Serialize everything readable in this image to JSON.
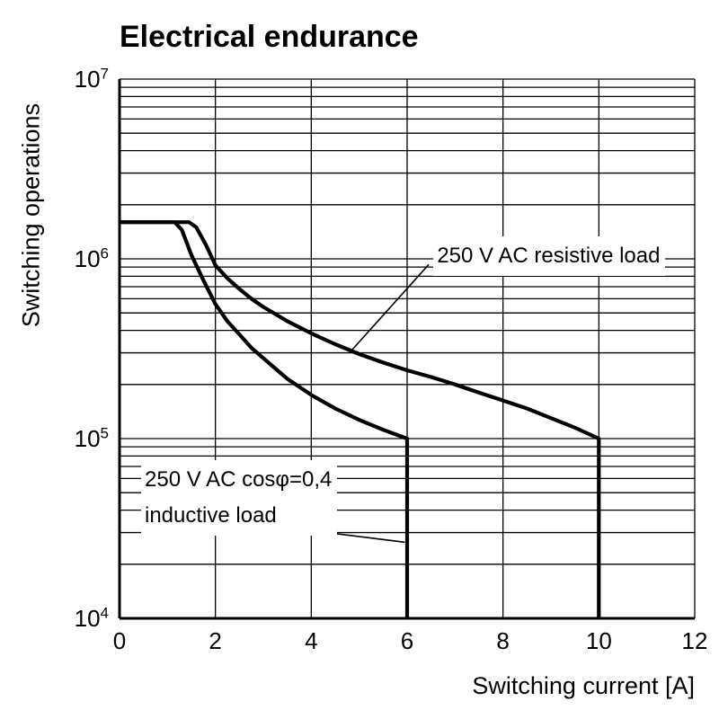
{
  "chart_data": {
    "type": "line",
    "title": "Electrical endurance",
    "xlabel": "Switching current [A]",
    "ylabel": "Switching operations",
    "grid": true,
    "x_axis": {
      "min": 0,
      "max": 12,
      "ticks": [
        0,
        2,
        4,
        6,
        8,
        10,
        12
      ]
    },
    "y_axis": {
      "scale": "log",
      "min": 10000,
      "max": 10000000,
      "tick_exponents": [
        4,
        5,
        6,
        7
      ],
      "minor_grid_multiples": [
        2,
        3,
        4,
        5,
        6,
        7,
        8,
        9
      ]
    },
    "series": [
      {
        "id": "resistive",
        "name": "250 V AC resistive load",
        "points": [
          [
            0,
            1600000.0
          ],
          [
            1.45,
            1600000.0
          ],
          [
            1.6,
            1500000.0
          ],
          [
            1.8,
            1200000.0
          ],
          [
            2,
            920000.0
          ],
          [
            2.25,
            780000.0
          ],
          [
            2.5,
            680000.0
          ],
          [
            2.75,
            600000.0
          ],
          [
            3,
            540000.0
          ],
          [
            3.5,
            450000.0
          ],
          [
            4,
            385000.0
          ],
          [
            4.5,
            335000.0
          ],
          [
            5,
            295000.0
          ],
          [
            5.5,
            265000.0
          ],
          [
            6,
            240000.0
          ],
          [
            6.5,
            220000.0
          ],
          [
            7,
            200000.0
          ],
          [
            7.5,
            180000.0
          ],
          [
            8,
            163000.0
          ],
          [
            8.5,
            147000.0
          ],
          [
            9,
            130000.0
          ],
          [
            9.5,
            115000.0
          ],
          [
            10,
            100000.0
          ],
          [
            10,
            10000.0
          ]
        ]
      },
      {
        "id": "inductive",
        "name": "250 V AC cosφ=0,4 inductive load",
        "points": [
          [
            0,
            1600000.0
          ],
          [
            1.15,
            1600000.0
          ],
          [
            1.3,
            1450000.0
          ],
          [
            1.5,
            1050000.0
          ],
          [
            1.75,
            760000.0
          ],
          [
            2,
            560000.0
          ],
          [
            2.25,
            450000.0
          ],
          [
            2.5,
            380000.0
          ],
          [
            2.75,
            320000.0
          ],
          [
            3,
            280000.0
          ],
          [
            3.5,
            215000.0
          ],
          [
            4,
            175000.0
          ],
          [
            4.5,
            147000.0
          ],
          [
            5,
            127000.0
          ],
          [
            5.5,
            112000.0
          ],
          [
            6,
            100000.0
          ],
          [
            6,
            10000.0
          ]
        ]
      }
    ],
    "annotations": [
      {
        "id": "resistive-load-label",
        "lines": [
          "250 V AC resistive load"
        ],
        "text_pos": [
          6.55,
          1330000.0
        ],
        "leader": {
          "from": [
            6.45,
            930000.0
          ],
          "to": [
            4.82,
            305000.0
          ]
        }
      },
      {
        "id": "inductive-load-label",
        "lines": [
          "250 V AC cosφ=0,4",
          "inductive load"
        ],
        "text_pos": [
          0.45,
          76000.0
        ],
        "leader": {
          "from": [
            3.9,
            31000.0
          ],
          "to": [
            5.95,
            26500.0
          ]
        }
      }
    ]
  }
}
